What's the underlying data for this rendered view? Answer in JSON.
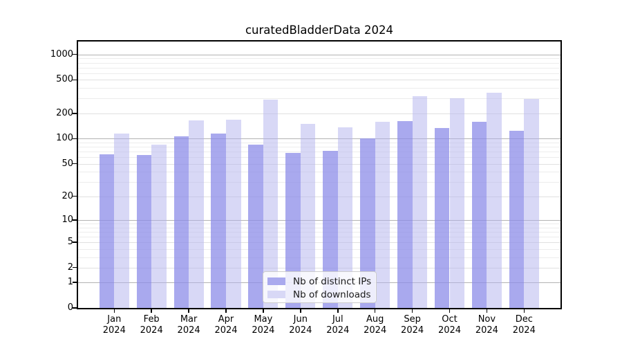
{
  "chart_data": {
    "type": "bar",
    "title": "curatedBladderData 2024",
    "xlabel": "",
    "ylabel": "",
    "y_scale": "log1p",
    "ylim": [
      0,
      1200
    ],
    "grid": "on",
    "legend_position": "bottom-center",
    "categories": [
      "Jan\n2024",
      "Feb\n2024",
      "Mar\n2024",
      "Apr\n2024",
      "May\n2024",
      "Jun\n2024",
      "Jul\n2024",
      "Aug\n2024",
      "Sep\n2024",
      "Oct\n2024",
      "Nov\n2024",
      "Dec\n2024"
    ],
    "series": [
      {
        "name": "Nb of distinct IPs",
        "key": "distinct-ips",
        "color": "rgba(140,140,232,0.75)",
        "swatch_color": "#a9a9ee",
        "values": [
          65,
          64,
          106,
          114,
          85,
          68,
          71,
          100,
          161,
          133,
          158,
          123
        ]
      },
      {
        "name": "Nb of downloads",
        "key": "downloads",
        "color": "rgba(178,178,238,0.5)",
        "swatch_color": "#d8d8f6",
        "values": [
          115,
          85,
          166,
          168,
          290,
          151,
          136,
          158,
          318,
          303,
          350,
          297
        ]
      }
    ],
    "y_ticks": [
      1000,
      500,
      200,
      100,
      50,
      20,
      10,
      5,
      2,
      1,
      0
    ],
    "y_minor_gridlines": [
      3,
      4,
      6,
      7,
      8,
      9,
      30,
      40,
      60,
      70,
      80,
      90,
      300,
      400,
      600,
      700,
      800,
      900
    ],
    "colors": {
      "major_power_gridline": "#b3b3b3",
      "major_gridline": "#e0e0e0",
      "minor_gridline": "#ececec",
      "axis": "#000000"
    }
  }
}
